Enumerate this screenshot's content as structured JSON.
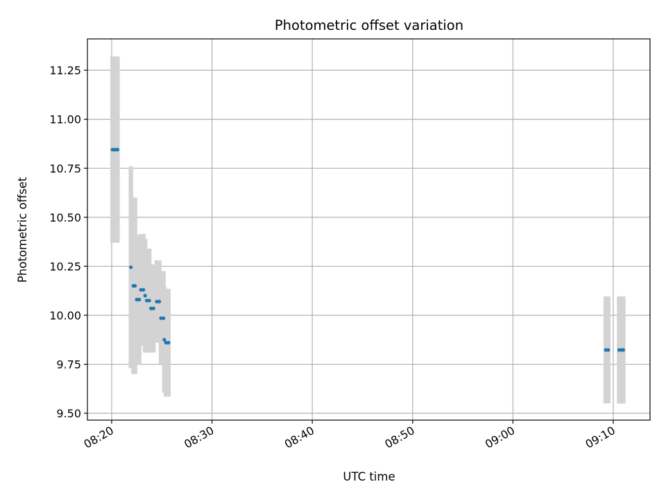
{
  "chart_data": {
    "type": "scatter",
    "title": "Photometric offset variation",
    "xlabel": "UTC time",
    "ylabel": "Photometric offset",
    "x_unit": "time (HH:MM)",
    "xlim": [
      "08:17:35",
      "09:13:40"
    ],
    "ylim": [
      9.465,
      11.41
    ],
    "x_ticks": [
      "08:20",
      "08:30",
      "08:40",
      "08:50",
      "09:00",
      "09:10"
    ],
    "y_ticks": [
      "9.50",
      "9.75",
      "10.00",
      "10.25",
      "10.50",
      "10.75",
      "11.00",
      "11.25"
    ],
    "grid": true,
    "legend": "none",
    "colors": {
      "points": "#1f77b4",
      "error_bars": "#d3d3d3",
      "grid": "#b0b0b0"
    },
    "series": [
      {
        "points": [
          {
            "x": "08:20:05",
            "y": 10.845,
            "yerr": 0.475
          },
          {
            "x": "08:20:20",
            "y": 10.845,
            "yerr": 0.475
          },
          {
            "x": "08:20:35",
            "y": 10.845,
            "yerr": 0.475
          },
          {
            "x": "08:21:55",
            "y": 10.245,
            "yerr": 0.515
          },
          {
            "x": "08:22:10",
            "y": 10.15,
            "yerr": 0.45
          },
          {
            "x": "08:22:20",
            "y": 10.15,
            "yerr": 0.45
          },
          {
            "x": "08:22:30",
            "y": 10.08,
            "yerr": 0.33
          },
          {
            "x": "08:22:45",
            "y": 10.08,
            "yerr": 0.33
          },
          {
            "x": "08:22:55",
            "y": 10.13,
            "yerr": 0.285
          },
          {
            "x": "08:23:10",
            "y": 10.13,
            "yerr": 0.285
          },
          {
            "x": "08:23:20",
            "y": 10.1,
            "yerr": 0.29
          },
          {
            "x": "08:23:30",
            "y": 10.075,
            "yerr": 0.265
          },
          {
            "x": "08:23:45",
            "y": 10.075,
            "yerr": 0.265
          },
          {
            "x": "08:23:55",
            "y": 10.035,
            "yerr": 0.225
          },
          {
            "x": "08:24:10",
            "y": 10.035,
            "yerr": 0.225
          },
          {
            "x": "08:24:30",
            "y": 10.07,
            "yerr": 0.21
          },
          {
            "x": "08:24:45",
            "y": 10.07,
            "yerr": 0.21
          },
          {
            "x": "08:24:55",
            "y": 9.985,
            "yerr": 0.24
          },
          {
            "x": "08:25:10",
            "y": 9.985,
            "yerr": 0.24
          },
          {
            "x": "08:25:15",
            "y": 9.875,
            "yerr": 0.27
          },
          {
            "x": "08:25:25",
            "y": 9.86,
            "yerr": 0.275
          },
          {
            "x": "08:25:40",
            "y": 9.86,
            "yerr": 0.275
          },
          {
            "x": "09:09:15",
            "y": 9.823,
            "yerr": 0.273
          },
          {
            "x": "09:09:30",
            "y": 9.823,
            "yerr": 0.273
          },
          {
            "x": "09:10:35",
            "y": 9.823,
            "yerr": 0.273
          },
          {
            "x": "09:10:50",
            "y": 9.823,
            "yerr": 0.273
          },
          {
            "x": "09:11:00",
            "y": 9.823,
            "yerr": 0.273
          }
        ]
      }
    ]
  }
}
